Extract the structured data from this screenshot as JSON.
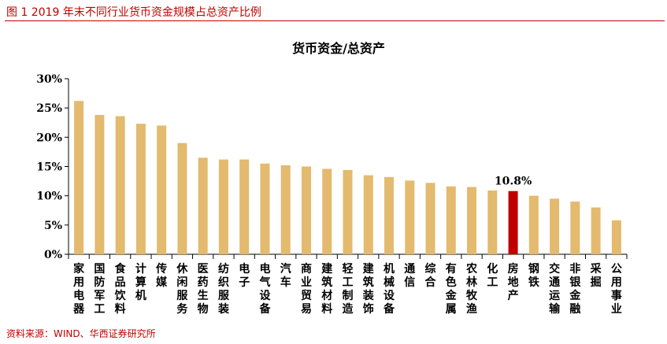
{
  "figure_caption": "图 1 2019 年末不同行业货币资金规模占总资产比例",
  "source_note": "资料来源：WIND、华西证券研究所",
  "chart_data": {
    "type": "bar",
    "title": "货币资金/总资产",
    "xlabel": "",
    "ylabel": "",
    "ylim": [
      0,
      30
    ],
    "yticks": [
      "0%",
      "5%",
      "10%",
      "15%",
      "20%",
      "25%",
      "30%"
    ],
    "grid": false,
    "legend": "none",
    "bar_color": "#E3BA6E",
    "highlight_color": "#C00000",
    "highlight_category": "房地产",
    "highlight_label": "10.8%",
    "categories": [
      "家用电器",
      "国防军工",
      "食品饮料",
      "计算机",
      "传媒",
      "休闲服务",
      "医药生物",
      "纺织服装",
      "电子",
      "电气设备",
      "汽车",
      "商业贸易",
      "建筑材料",
      "轻工制造",
      "建筑装饰",
      "机械设备",
      "通信",
      "综合",
      "有色金属",
      "农林牧渔",
      "化工",
      "房地产",
      "钢铁",
      "交通运输",
      "非银金融",
      "采掘",
      "公用事业"
    ],
    "values": [
      26.2,
      23.8,
      23.6,
      22.3,
      22.0,
      19.0,
      16.5,
      16.2,
      16.2,
      15.5,
      15.2,
      15.0,
      14.6,
      14.4,
      13.5,
      13.2,
      12.6,
      12.2,
      11.6,
      11.5,
      10.9,
      10.8,
      10.0,
      9.5,
      9.0,
      8.0,
      5.8
    ]
  }
}
